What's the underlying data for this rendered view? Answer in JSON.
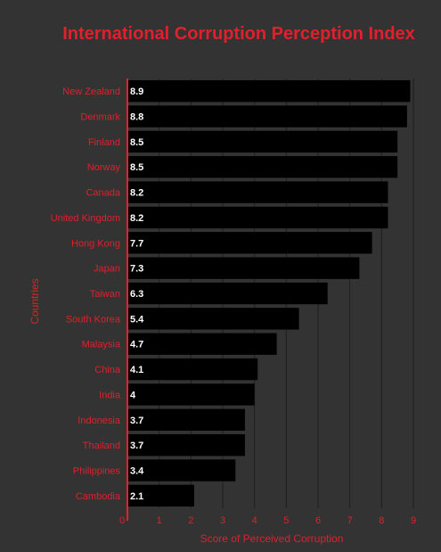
{
  "chart_data": {
    "type": "bar",
    "orientation": "horizontal",
    "title": "International Corruption Perception Index",
    "xlabel": "Score of Perceived Corruption",
    "ylabel": "Countries",
    "categories": [
      "New Zealand",
      "Denmark",
      "Finland",
      "Norway",
      "Canada",
      "United Kingdom",
      "Hong Kong",
      "Japan",
      "Taiwan",
      "South Korea",
      "Malaysia",
      "China",
      "India",
      "Indonesia",
      "Thailand",
      "Philippines",
      "Cambodia"
    ],
    "values": [
      8.9,
      8.8,
      8.5,
      8.5,
      8.2,
      8.2,
      7.7,
      7.3,
      6.3,
      5.4,
      4.7,
      4.1,
      4,
      3.7,
      3.7,
      3.4,
      2.1
    ],
    "value_labels": [
      "8.9",
      "8.8",
      "8.5",
      "8.5",
      "8.2",
      "8.2",
      "7.7",
      "7.3",
      "6.3",
      "5.4",
      "4.7",
      "4.1",
      "4",
      "3.7",
      "3.7",
      "3.4",
      "2.1"
    ],
    "xlim": [
      0,
      9
    ],
    "xticks": [
      0,
      1,
      2,
      3,
      4,
      5,
      6,
      7,
      8,
      9
    ],
    "grid": true,
    "legend": "none",
    "colors": {
      "background": "#333333",
      "bar": "#000000",
      "accent": "#e0202b",
      "grid": "#1e1e1e",
      "value_text": "#ffffff"
    }
  }
}
